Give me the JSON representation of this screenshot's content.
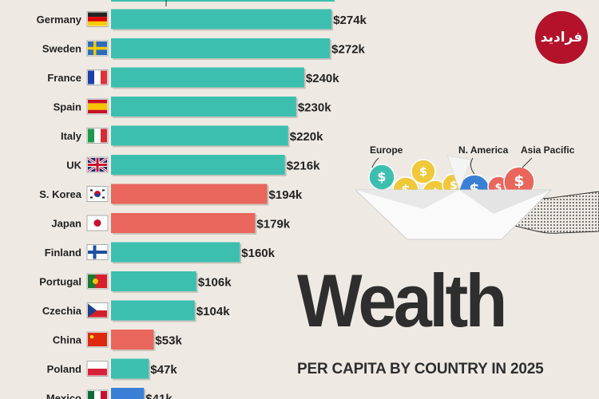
{
  "chart_data": {
    "type": "bar",
    "orientation": "horizontal",
    "categories": [
      "Germany",
      "Sweden",
      "France",
      "Spain",
      "Italy",
      "UK",
      "S. Korea",
      "Japan",
      "Finland",
      "Portugal",
      "Czechia",
      "China",
      "Poland",
      "Mexico"
    ],
    "values": [
      274,
      272,
      240,
      230,
      220,
      216,
      194,
      179,
      160,
      106,
      104,
      53,
      47,
      41
    ],
    "value_labels": [
      "$274k",
      "$272k",
      "$240k",
      "$230k",
      "$220k",
      "$216k",
      "$194k",
      "$179k",
      "$160k",
      "$106k",
      "$104k",
      "$53k",
      "$47k",
      "$41k"
    ],
    "regions": [
      "Europe",
      "Europe",
      "Europe",
      "Europe",
      "Europe",
      "Europe",
      "Asia Pacific",
      "Asia Pacific",
      "Europe",
      "Europe",
      "Europe",
      "Asia Pacific",
      "Europe",
      "N. America"
    ],
    "title": "Wealth",
    "subtitle": "PER CAPITA BY COUNTRY IN 2025",
    "legend": [
      {
        "name": "Europe",
        "color": "#3dbfb0"
      },
      {
        "name": "N. America",
        "color": "#3a7fd6"
      },
      {
        "name": "Asia Pacific",
        "color": "#e9665d"
      }
    ],
    "legend_placement": "right"
  },
  "logo_text": "فرادید"
}
